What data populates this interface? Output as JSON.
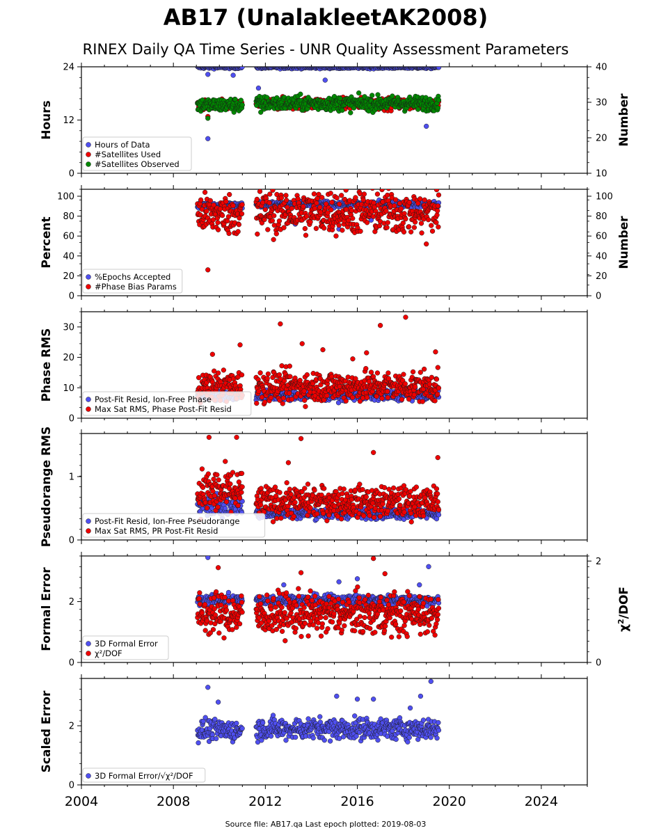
{
  "header": {
    "title": "AB17 (UnalakleetAK2008)",
    "subtitle": "RINEX Daily QA Time Series - UNR Quality Assessment Parameters"
  },
  "footer": {
    "source": "Source file: AB17.qa Last epoch plotted: 2019-08-03"
  },
  "colors": {
    "blue": "#4f4ff0",
    "red": "#ee0000",
    "green": "#008800",
    "edge": "#1a1a1a"
  },
  "chart_data": [
    {
      "type": "scatter",
      "ylabel": "Hours",
      "ylabel_right": "Number",
      "xlim": [
        2004,
        2026
      ],
      "ylim": [
        0,
        24
      ],
      "ylim_right": [
        10,
        40
      ],
      "yticks": [
        "0",
        "12",
        "24"
      ],
      "yticks_right": [
        "10",
        "20",
        "30",
        "40"
      ],
      "legend": "lower-left",
      "series": [
        {
          "name": "Hours of Data",
          "color": "blue",
          "axis": "left",
          "segments": [
            {
              "x": [
                2009.05,
                2011.0
              ],
              "base": 23.9,
              "spread": 0.15
            },
            {
              "x": [
                2011.6,
                2019.55
              ],
              "base": 23.9,
              "spread": 0.15
            }
          ],
          "outliers": [
            [
              2009.5,
              22.3
            ],
            [
              2009.5,
              7.8
            ],
            [
              2010.6,
              22.1
            ],
            [
              2011.7,
              19.2
            ],
            [
              2014.6,
              21.0
            ],
            [
              2019.0,
              10.6
            ]
          ]
        },
        {
          "name": "#Satellites Used",
          "color": "red",
          "axis": "right",
          "segments": [
            {
              "x": [
                2009.05,
                2011.0
              ],
              "base": 29.2,
              "spread": 0.7
            },
            {
              "x": [
                2011.6,
                2019.55
              ],
              "base": 29.6,
              "spread": 0.8
            }
          ],
          "outliers": [
            [
              2009.5,
              26.0
            ]
          ]
        },
        {
          "name": "#Satellites Observed",
          "color": "green",
          "axis": "right",
          "segments": [
            {
              "x": [
                2009.05,
                2011.0
              ],
              "base": 29.2,
              "spread": 1.0
            },
            {
              "x": [
                2011.6,
                2019.55
              ],
              "base": 29.7,
              "spread": 1.0
            }
          ],
          "outliers": [
            [
              2009.5,
              25.5
            ],
            [
              2011.8,
              27.2
            ]
          ]
        }
      ]
    },
    {
      "type": "scatter",
      "ylabel": "Percent",
      "ylabel_right": "Number",
      "xlim": [
        2004,
        2026
      ],
      "ylim": [
        0,
        107
      ],
      "ylim_right": [
        0,
        107
      ],
      "yticks": [
        "0",
        "20",
        "40",
        "60",
        "80",
        "100"
      ],
      "yticks_right": [
        "0",
        "20",
        "40",
        "60",
        "80",
        "100"
      ],
      "legend": "lower-left",
      "series": [
        {
          "name": "%Epochs Accepted",
          "color": "blue",
          "axis": "left",
          "segments": [
            {
              "x": [
                2009.05,
                2011.0
              ],
              "base": 91,
              "spread": 1.5
            },
            {
              "x": [
                2011.6,
                2019.55
              ],
              "base": 92,
              "spread": 1.5
            }
          ],
          "outliers": [
            [
              2013.3,
              72.0
            ],
            [
              2015.2,
              67.0
            ],
            [
              2016.0,
              66.0
            ],
            [
              2016.6,
              76.0
            ]
          ]
        },
        {
          "name": "#Phase Bias Params",
          "color": "red",
          "axis": "right",
          "segments": [
            {
              "x": [
                2009.05,
                2011.0
              ],
              "base": 82,
              "spread": 10
            },
            {
              "x": [
                2011.6,
                2019.55
              ],
              "base": 84,
              "spread": 11
            }
          ],
          "outliers": [
            [
              2009.5,
              26.0
            ],
            [
              2019.0,
              52.0
            ],
            [
              2011.65,
              62.0
            ]
          ]
        }
      ]
    },
    {
      "type": "scatter",
      "ylabel": "Phase RMS",
      "xlim": [
        2004,
        2026
      ],
      "ylim": [
        0,
        35
      ],
      "yticks": [
        "0",
        "10",
        "20",
        "30"
      ],
      "legend": "lower-left",
      "series": [
        {
          "name": "Post-Fit Resid, Ion-Free Phase",
          "color": "blue",
          "axis": "left",
          "segments": [
            {
              "x": [
                2009.05,
                2011.0
              ],
              "base": 7.5,
              "spread": 0.8
            },
            {
              "x": [
                2011.6,
                2019.55
              ],
              "base": 7.5,
              "spread": 0.8
            }
          ],
          "outliers": []
        },
        {
          "name": "Max Sat RMS, Phase Post-Fit Resid",
          "color": "red",
          "axis": "left",
          "segments": [
            {
              "x": [
                2009.05,
                2011.0
              ],
              "base": 10.5,
              "spread": 2.5
            },
            {
              "x": [
                2011.6,
                2019.55
              ],
              "base": 10.5,
              "spread": 2.5
            }
          ],
          "outliers": [
            [
              2012.65,
              31.0
            ],
            [
              2013.6,
              24.5
            ],
            [
              2017.0,
              30.5
            ],
            [
              2018.1,
              33.2
            ],
            [
              2019.4,
              21.8
            ],
            [
              2010.9,
              24.1
            ],
            [
              2009.7,
              21.0
            ],
            [
              2014.5,
              22.5
            ],
            [
              2015.8,
              19.5
            ],
            [
              2016.4,
              21.5
            ]
          ]
        }
      ]
    },
    {
      "type": "scatter",
      "ylabel": "Pseudorange RMS",
      "xlim": [
        2004,
        2026
      ],
      "ylim": [
        0,
        1.68
      ],
      "yticks": [
        "0",
        "1"
      ],
      "legend": "lower-left",
      "series": [
        {
          "name": "Post-Fit Resid, Ion-Free Pseudorange",
          "color": "blue",
          "axis": "left",
          "segments": [
            {
              "x": [
                2009.05,
                2011.0
              ],
              "base": 0.55,
              "spread": 0.08
            },
            {
              "x": [
                2011.6,
                2019.55
              ],
              "base": 0.42,
              "spread": 0.04
            }
          ],
          "outliers": []
        },
        {
          "name": "Max Sat RMS, PR Post-Fit Resid",
          "color": "red",
          "axis": "left",
          "segments": [
            {
              "x": [
                2009.05,
                2011.0
              ],
              "base": 0.75,
              "spread": 0.18
            },
            {
              "x": [
                2011.6,
                2019.55
              ],
              "base": 0.6,
              "spread": 0.12
            }
          ],
          "outliers": [
            [
              2009.55,
              1.62
            ],
            [
              2010.75,
              1.62
            ],
            [
              2013.55,
              1.6
            ],
            [
              2016.7,
              1.38
            ],
            [
              2019.5,
              1.3
            ],
            [
              2013.0,
              1.22
            ]
          ]
        }
      ]
    },
    {
      "type": "scatter",
      "ylabel": "Formal Error",
      "ylabel_right": "χ²/DOF",
      "xlim": [
        2004,
        2026
      ],
      "ylim": [
        0,
        3.5
      ],
      "ylim_right": [
        0,
        2.1
      ],
      "yticks": [
        "0",
        "2"
      ],
      "yticks_right": [
        "0",
        "2"
      ],
      "legend": "lower-left",
      "series": [
        {
          "name": "3D Formal Error",
          "color": "blue",
          "axis": "left",
          "segments": [
            {
              "x": [
                2009.05,
                2011.0
              ],
              "base": 2.05,
              "spread": 0.08
            },
            {
              "x": [
                2011.6,
                2019.55
              ],
              "base": 2.05,
              "spread": 0.08
            }
          ],
          "outliers": [
            [
              2009.5,
              3.45
            ],
            [
              2012.8,
              2.55
            ],
            [
              2015.2,
              2.65
            ],
            [
              2016.0,
              2.75
            ],
            [
              2018.7,
              2.55
            ],
            [
              2019.1,
              3.15
            ],
            [
              2010.4,
              2.3
            ]
          ]
        },
        {
          "name": "χ²/DOF",
          "color": "red",
          "axis": "right",
          "segments": [
            {
              "x": [
                2009.05,
                2011.0
              ],
              "base": 0.95,
              "spread": 0.2
            },
            {
              "x": [
                2011.6,
                2019.55
              ],
              "base": 0.95,
              "spread": 0.2
            }
          ],
          "outliers": [
            [
              2009.95,
              1.87
            ],
            [
              2013.55,
              1.77
            ],
            [
              2016.7,
              2.05
            ],
            [
              2017.2,
              1.75
            ]
          ]
        }
      ]
    },
    {
      "type": "scatter",
      "ylabel": "Scaled Error",
      "xlim": [
        2004,
        2026
      ],
      "ylim": [
        0,
        3.6
      ],
      "yticks": [
        "0",
        "2"
      ],
      "legend": "lower-left",
      "series": [
        {
          "name": "3D Formal Error/√χ²/DOF",
          "color": "blue",
          "axis": "left",
          "segments": [
            {
              "x": [
                2009.05,
                2011.0
              ],
              "base": 1.85,
              "spread": 0.18
            },
            {
              "x": [
                2011.6,
                2019.55
              ],
              "base": 1.9,
              "spread": 0.18
            }
          ],
          "outliers": [
            [
              2009.5,
              3.3
            ],
            [
              2009.95,
              2.8
            ],
            [
              2015.1,
              3.0
            ],
            [
              2016.0,
              2.9
            ],
            [
              2016.7,
              2.9
            ],
            [
              2018.3,
              2.6
            ],
            [
              2018.75,
              3.0
            ],
            [
              2019.2,
              3.5
            ]
          ]
        }
      ]
    }
  ],
  "xaxis": {
    "ticks": [
      "2004",
      "2008",
      "2012",
      "2016",
      "2020",
      "2024"
    ]
  }
}
